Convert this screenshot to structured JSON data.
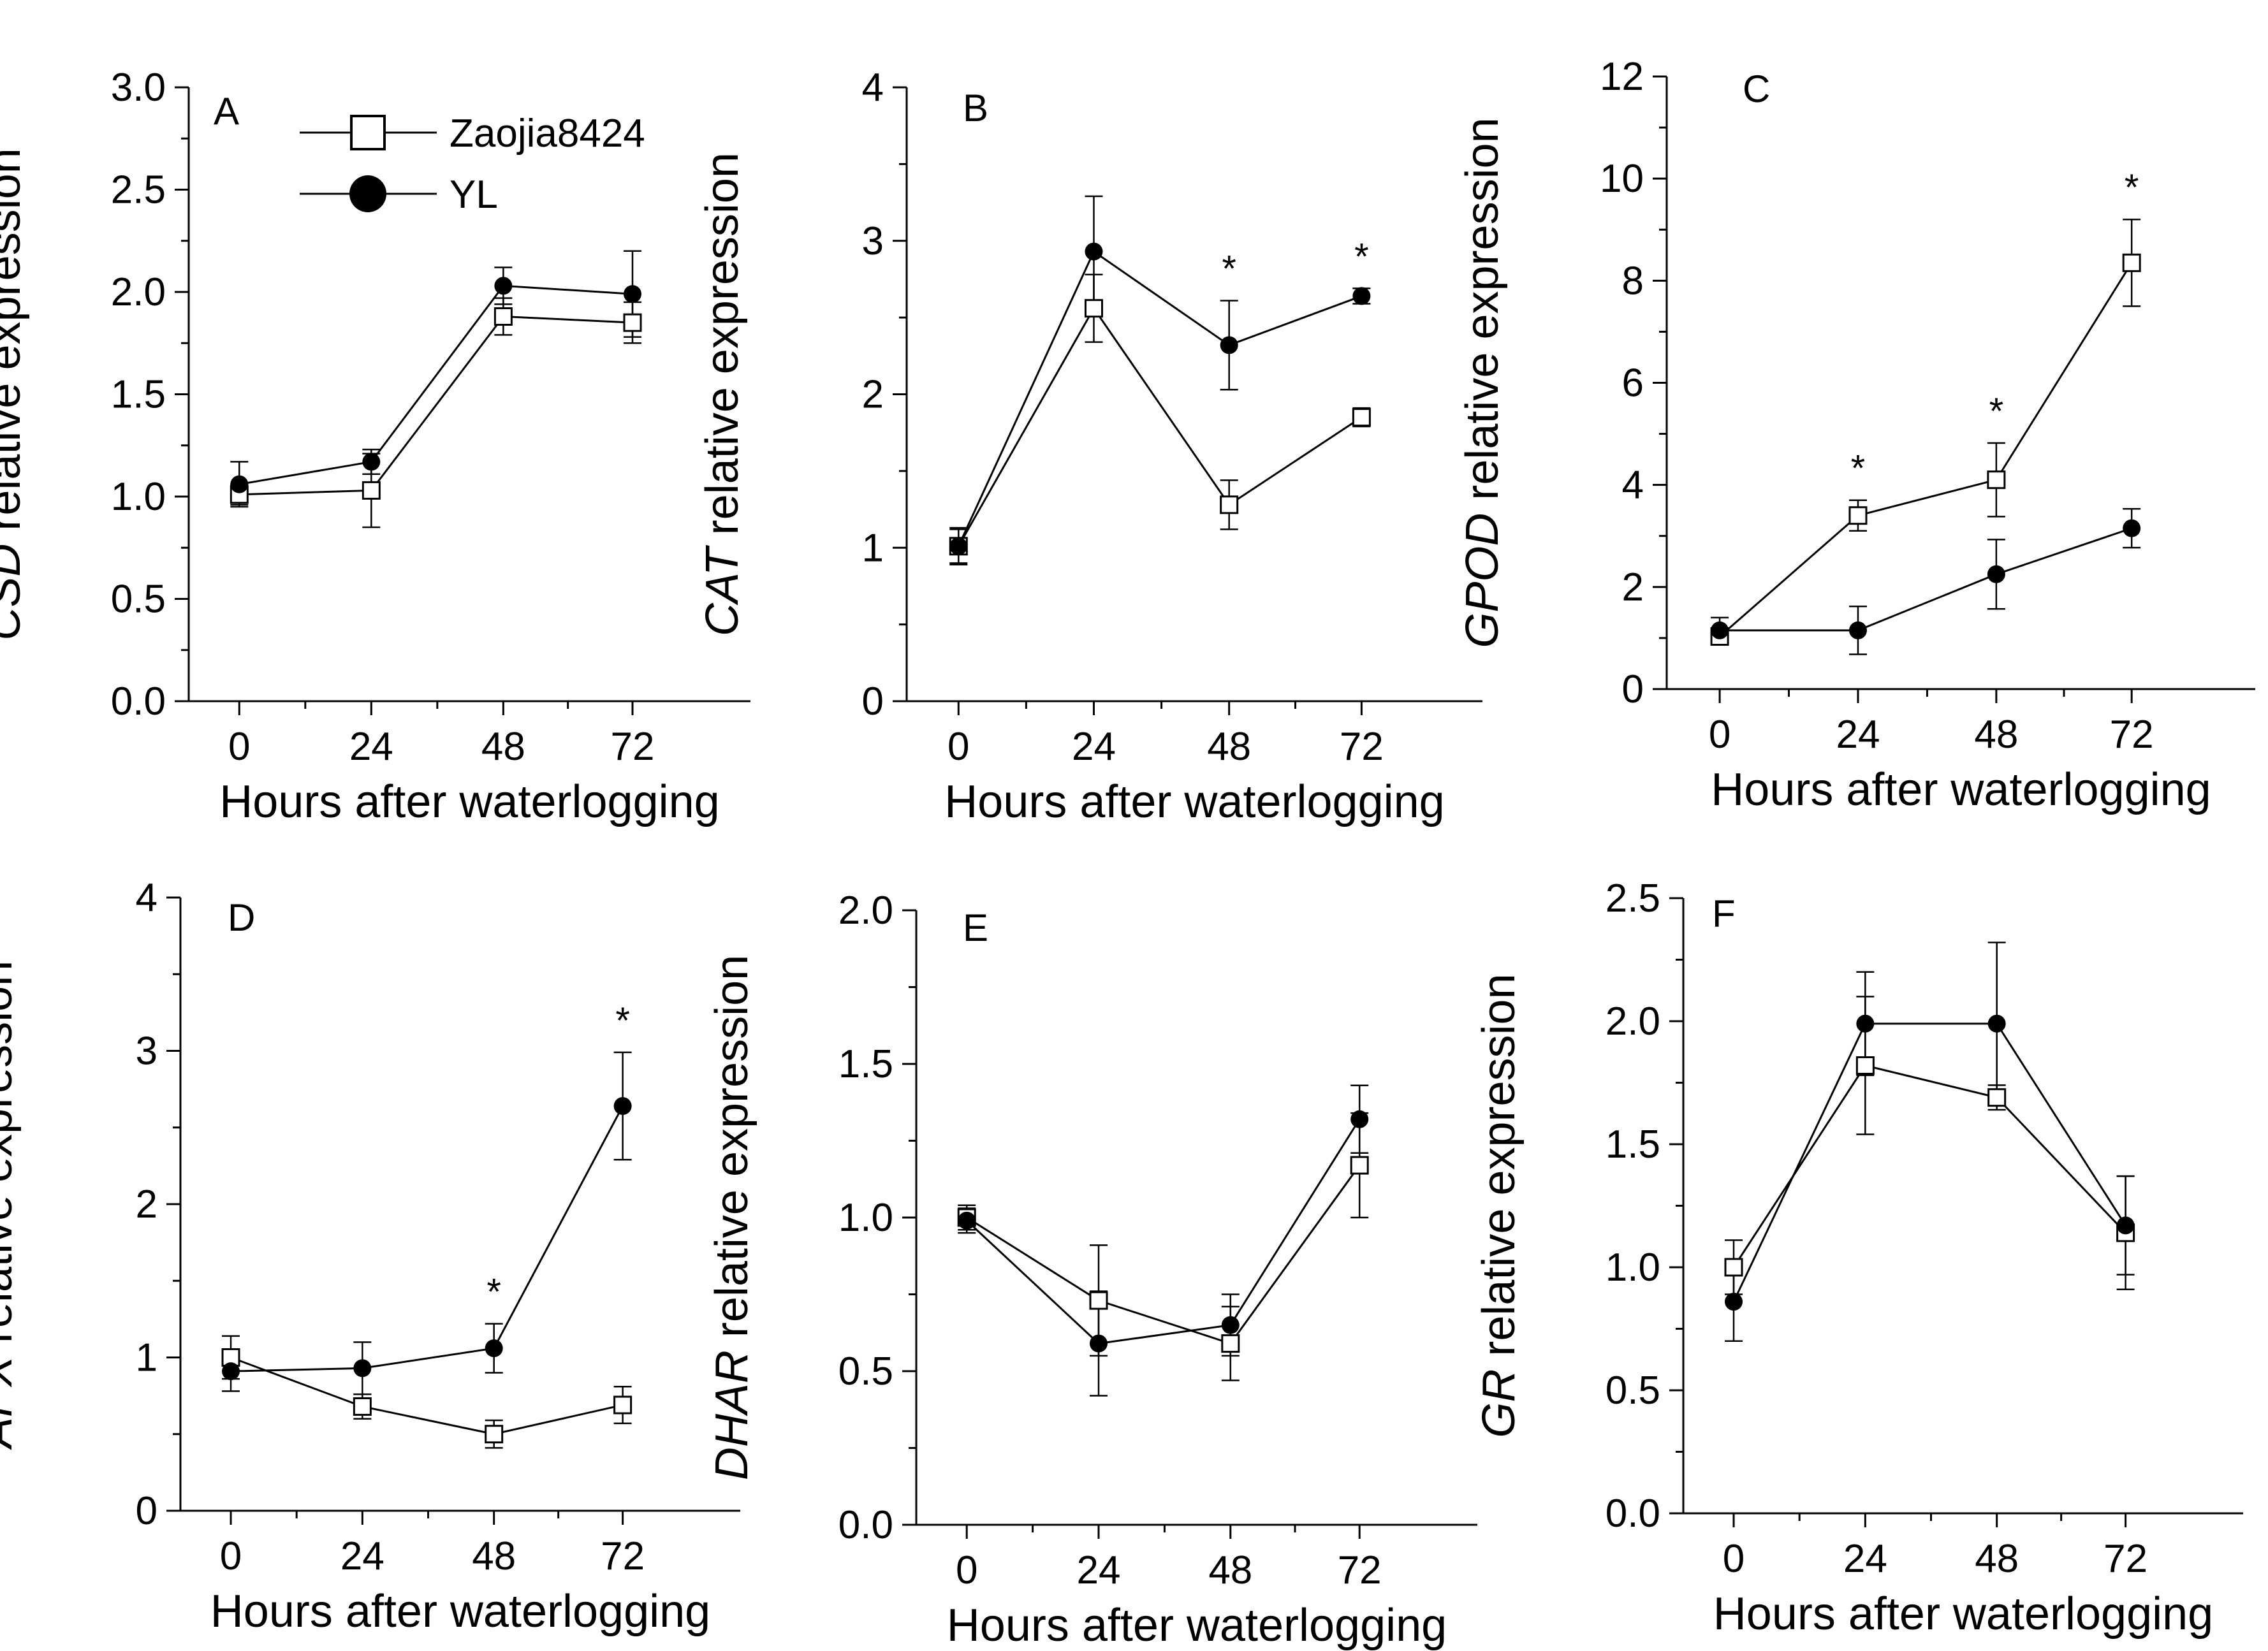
{
  "figure": {
    "x_ticks": [
      "0",
      "24",
      "48",
      "72"
    ],
    "series_names": [
      "Zaojia8424",
      "YL"
    ],
    "colors": {
      "line": "#000000",
      "background": "#ffffff"
    }
  },
  "legend": {
    "entries": [
      {
        "label": "Zaojia8424",
        "marker": "open-square"
      },
      {
        "label": "YL",
        "marker": "filled-circle"
      }
    ]
  },
  "chart_data": [
    {
      "panel": "A",
      "type": "line",
      "gene": "CSD",
      "ylabel_suffix": " relative expression",
      "xlabel": "Hours after waterlogging",
      "categories": [
        "0",
        "24",
        "48",
        "72"
      ],
      "ylim": [
        0.0,
        3.0
      ],
      "yticks": [
        "0.0",
        "0.5",
        "1.0",
        "1.5",
        "2.0",
        "2.5",
        "3.0"
      ],
      "series": [
        {
          "name": "Zaojia8424",
          "marker": "open-square",
          "values": [
            1.01,
            1.03,
            1.88,
            1.85
          ],
          "errors": [
            0.05,
            0.18,
            0.09,
            0.1
          ]
        },
        {
          "name": "YL",
          "marker": "filled-circle",
          "values": [
            1.06,
            1.17,
            2.03,
            1.99
          ],
          "errors": [
            0.11,
            0.06,
            0.09,
            0.21
          ]
        }
      ],
      "significance": []
    },
    {
      "panel": "B",
      "type": "line",
      "gene": "CAT",
      "ylabel_suffix": " relative expression",
      "xlabel": "Hours after waterlogging",
      "categories": [
        "0",
        "24",
        "48",
        "72"
      ],
      "ylim": [
        0,
        4
      ],
      "yticks": [
        "0",
        "1",
        "2",
        "3",
        "4"
      ],
      "series": [
        {
          "name": "Zaojia8424",
          "marker": "open-square",
          "values": [
            1.01,
            2.56,
            1.28,
            1.85
          ],
          "errors": [
            0.11,
            0.22,
            0.16,
            0.06
          ]
        },
        {
          "name": "YL",
          "marker": "filled-circle",
          "values": [
            1.01,
            2.93,
            2.32,
            2.64
          ],
          "errors": [
            0.12,
            0.36,
            0.29,
            0.05
          ]
        }
      ],
      "significance": [
        {
          "x": "48",
          "label": "*"
        },
        {
          "x": "72",
          "label": "*"
        }
      ]
    },
    {
      "panel": "C",
      "type": "line",
      "gene": "GPOD",
      "ylabel_suffix": " relative expression",
      "xlabel": "Hours after waterlogging",
      "categories": [
        "0",
        "24",
        "48",
        "72"
      ],
      "ylim": [
        0,
        12
      ],
      "yticks": [
        "0",
        "2",
        "4",
        "6",
        "8",
        "10",
        "12"
      ],
      "series": [
        {
          "name": "Zaojia8424",
          "marker": "open-square",
          "values": [
            1.03,
            3.4,
            4.1,
            8.35
          ],
          "errors": [
            0.15,
            0.3,
            0.72,
            0.85
          ]
        },
        {
          "name": "YL",
          "marker": "filled-circle",
          "values": [
            1.15,
            1.15,
            2.25,
            3.15
          ],
          "errors": [
            0.25,
            0.47,
            0.68,
            0.38
          ]
        }
      ],
      "significance": [
        {
          "x": "24",
          "label": "*"
        },
        {
          "x": "48",
          "label": "*"
        },
        {
          "x": "72",
          "label": "*"
        }
      ]
    },
    {
      "panel": "D",
      "type": "line",
      "gene": "APX",
      "ylabel_suffix": " relative expression",
      "xlabel": "Hours after waterlogging",
      "categories": [
        "0",
        "24",
        "48",
        "72"
      ],
      "ylim": [
        0,
        4
      ],
      "yticks": [
        "0",
        "1",
        "2",
        "3",
        "4"
      ],
      "series": [
        {
          "name": "Zaojia8424",
          "marker": "open-square",
          "values": [
            1.0,
            0.68,
            0.5,
            0.69
          ],
          "errors": [
            0.14,
            0.08,
            0.09,
            0.12
          ]
        },
        {
          "name": "YL",
          "marker": "filled-circle",
          "values": [
            0.91,
            0.93,
            1.06,
            2.64
          ],
          "errors": [
            0.13,
            0.17,
            0.16,
            0.35
          ]
        }
      ],
      "significance": [
        {
          "x": "48",
          "label": "*"
        },
        {
          "x": "72",
          "label": "*"
        }
      ]
    },
    {
      "panel": "E",
      "type": "line",
      "gene": "DHAR",
      "ylabel_suffix": " relative expression",
      "xlabel": "Hours after waterlogging",
      "categories": [
        "0",
        "24",
        "48",
        "72"
      ],
      "ylim": [
        0.0,
        2.0
      ],
      "yticks": [
        "0.0",
        "0.5",
        "1.0",
        "1.5",
        "2.0"
      ],
      "series": [
        {
          "name": "Zaojia8424",
          "marker": "open-square",
          "values": [
            1.0,
            0.73,
            0.59,
            1.17
          ],
          "errors": [
            0.04,
            0.18,
            0.12,
            0.17
          ]
        },
        {
          "name": "YL",
          "marker": "filled-circle",
          "values": [
            0.99,
            0.59,
            0.65,
            1.32
          ],
          "errors": [
            0.04,
            0.17,
            0.1,
            0.11
          ]
        }
      ],
      "significance": []
    },
    {
      "panel": "F",
      "type": "line",
      "gene": "GR",
      "ylabel_suffix": " relative expression",
      "xlabel": "Hours after waterlogging",
      "categories": [
        "0",
        "24",
        "48",
        "72"
      ],
      "ylim": [
        0.0,
        2.5
      ],
      "yticks": [
        "0.0",
        "0.5",
        "1.0",
        "1.5",
        "2.0",
        "2.5"
      ],
      "series": [
        {
          "name": "Zaojia8424",
          "marker": "open-square",
          "values": [
            1.0,
            1.82,
            1.69,
            1.14
          ],
          "errors": [
            0.11,
            0.28,
            0.05,
            0.23
          ]
        },
        {
          "name": "YL",
          "marker": "filled-circle",
          "values": [
            0.86,
            1.99,
            1.99,
            1.17
          ],
          "errors": [
            0.16,
            0.21,
            0.33,
            0.2
          ]
        }
      ],
      "significance": []
    }
  ]
}
